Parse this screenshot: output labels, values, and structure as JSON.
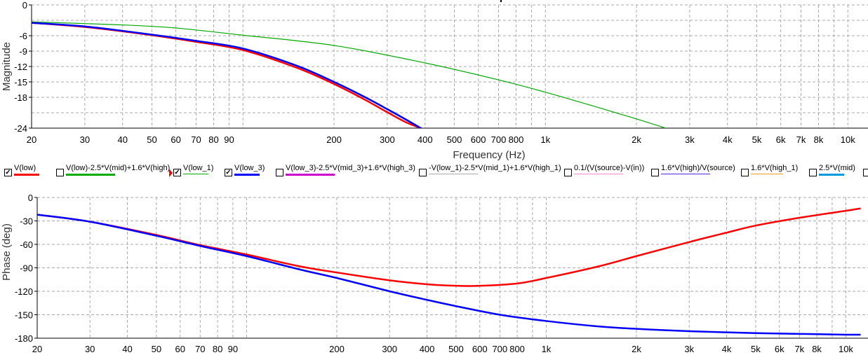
{
  "chart_data": [
    {
      "type": "line",
      "title": "",
      "xlabel": "Frequency (Hz)",
      "ylabel": "Magnitude",
      "xscale": "log",
      "xlim": [
        20,
        11200
      ],
      "ylim": [
        -24,
        0
      ],
      "grid": true,
      "x_ticks": [
        "20",
        "30",
        "40",
        "50",
        "60",
        "70",
        "80",
        "90",
        "200",
        "300",
        "400",
        "500",
        "600",
        "700",
        "800",
        "1k",
        "2k",
        "3k",
        "4k",
        "5k",
        "6k",
        "7k",
        "8k",
        "10k"
      ],
      "y_ticks": [
        "0",
        "-6",
        "-9",
        "-12",
        "-15",
        "-18",
        "-24"
      ],
      "series": [
        {
          "name": "V(low)",
          "color": "#ff0000",
          "x": [
            20,
            30,
            50,
            70,
            100,
            150,
            200,
            250,
            300,
            350,
            410
          ],
          "y": [
            -3.5,
            -4.3,
            -5.9,
            -7.2,
            -8.8,
            -12.2,
            -15.4,
            -18.3,
            -20.9,
            -23.0,
            -24.5
          ]
        },
        {
          "name": "V(low_3)",
          "color": "#0000ff",
          "x": [
            20,
            30,
            50,
            70,
            100,
            150,
            200,
            250,
            300,
            350,
            400
          ],
          "y": [
            -3.5,
            -4.2,
            -5.8,
            -7.0,
            -8.5,
            -11.8,
            -15.0,
            -17.8,
            -20.3,
            -22.5,
            -24.5
          ]
        },
        {
          "name": "V(low_1)",
          "color": "#00aa00",
          "x": [
            20,
            40,
            60,
            100,
            200,
            400,
            700,
            1000,
            1500,
            2000,
            2500
          ],
          "y": [
            -3.3,
            -3.9,
            -4.5,
            -5.9,
            -7.9,
            -11.3,
            -14.6,
            -17.0,
            -20.0,
            -22.2,
            -24.0
          ]
        }
      ]
    },
    {
      "type": "line",
      "title": "",
      "xlabel": "",
      "ylabel": "Phase (deg)",
      "xscale": "log",
      "xlim": [
        20,
        11200
      ],
      "ylim": [
        -180,
        0
      ],
      "grid": true,
      "x_ticks": [
        "20",
        "30",
        "40",
        "50",
        "60",
        "70",
        "80",
        "90",
        "200",
        "300",
        "400",
        "500",
        "600",
        "700",
        "800",
        "1k",
        "2k",
        "3k",
        "4k",
        "5k",
        "6k",
        "7k",
        "8k",
        "10k"
      ],
      "y_ticks": [
        "0",
        "-30",
        "-60",
        "-90",
        "-120",
        "-150",
        "-180"
      ],
      "series": [
        {
          "name": "V(low)",
          "color": "#ff0000",
          "x": [
            20,
            30,
            50,
            70,
            100,
            150,
            200,
            300,
            400,
            500,
            600,
            800,
            1000,
            1500,
            2000,
            3000,
            4000,
            5000,
            7000,
            10000,
            11200
          ],
          "y": [
            -22,
            -31,
            -48,
            -61,
            -73,
            -88,
            -96,
            -106,
            -111,
            -113,
            -113,
            -110,
            -103,
            -88,
            -75,
            -57,
            -45,
            -36,
            -26,
            -17,
            -14
          ]
        },
        {
          "name": "V(low_3)",
          "color": "#0000ff",
          "x": [
            20,
            30,
            50,
            70,
            100,
            150,
            200,
            300,
            400,
            500,
            700,
            1000,
            1500,
            2000,
            3000,
            5000,
            7000,
            10000,
            11200
          ],
          "y": [
            -22,
            -31,
            -49,
            -62,
            -75,
            -92,
            -103,
            -120,
            -131,
            -139,
            -150,
            -158,
            -165,
            -168,
            -171,
            -173.5,
            -174.5,
            -175.5,
            -175.5
          ]
        }
      ]
    }
  ],
  "legend": [
    {
      "label": "V(low)",
      "checked": true,
      "color": "#ff0000"
    },
    {
      "label": "V(low)-2.5*V(mid)+1.6*V(high)",
      "checked": false,
      "color": "#00aa00"
    },
    {
      "label": "V(low_1)",
      "checked": true,
      "color": "#00aa00"
    },
    {
      "label": "V(low_3)",
      "checked": true,
      "color": "#0000ff"
    },
    {
      "label": "V(low_3)-2.5*V(mid_3)+1.6*V(high_3)",
      "checked": false,
      "color": "#cc00cc"
    },
    {
      "label": "-V(low_1)-2.5*V(mid_1)+1.6*V(high_1)",
      "checked": false,
      "color": "#aaaaaa"
    },
    {
      "label": "0.1/(V(source)-V(in))",
      "checked": false,
      "color": "#ff88cc"
    },
    {
      "label": "1.6*V(high)/V(source)",
      "checked": false,
      "color": "#5522dd"
    },
    {
      "label": "1.6*V(high_1)",
      "checked": false,
      "color": "#ee9922"
    },
    {
      "label": "2.5*V(mid)",
      "checked": false,
      "color": "#0099dd"
    },
    {
      "label": "",
      "checked": false,
      "color": "#ffffff"
    }
  ],
  "check_mark": "✓"
}
